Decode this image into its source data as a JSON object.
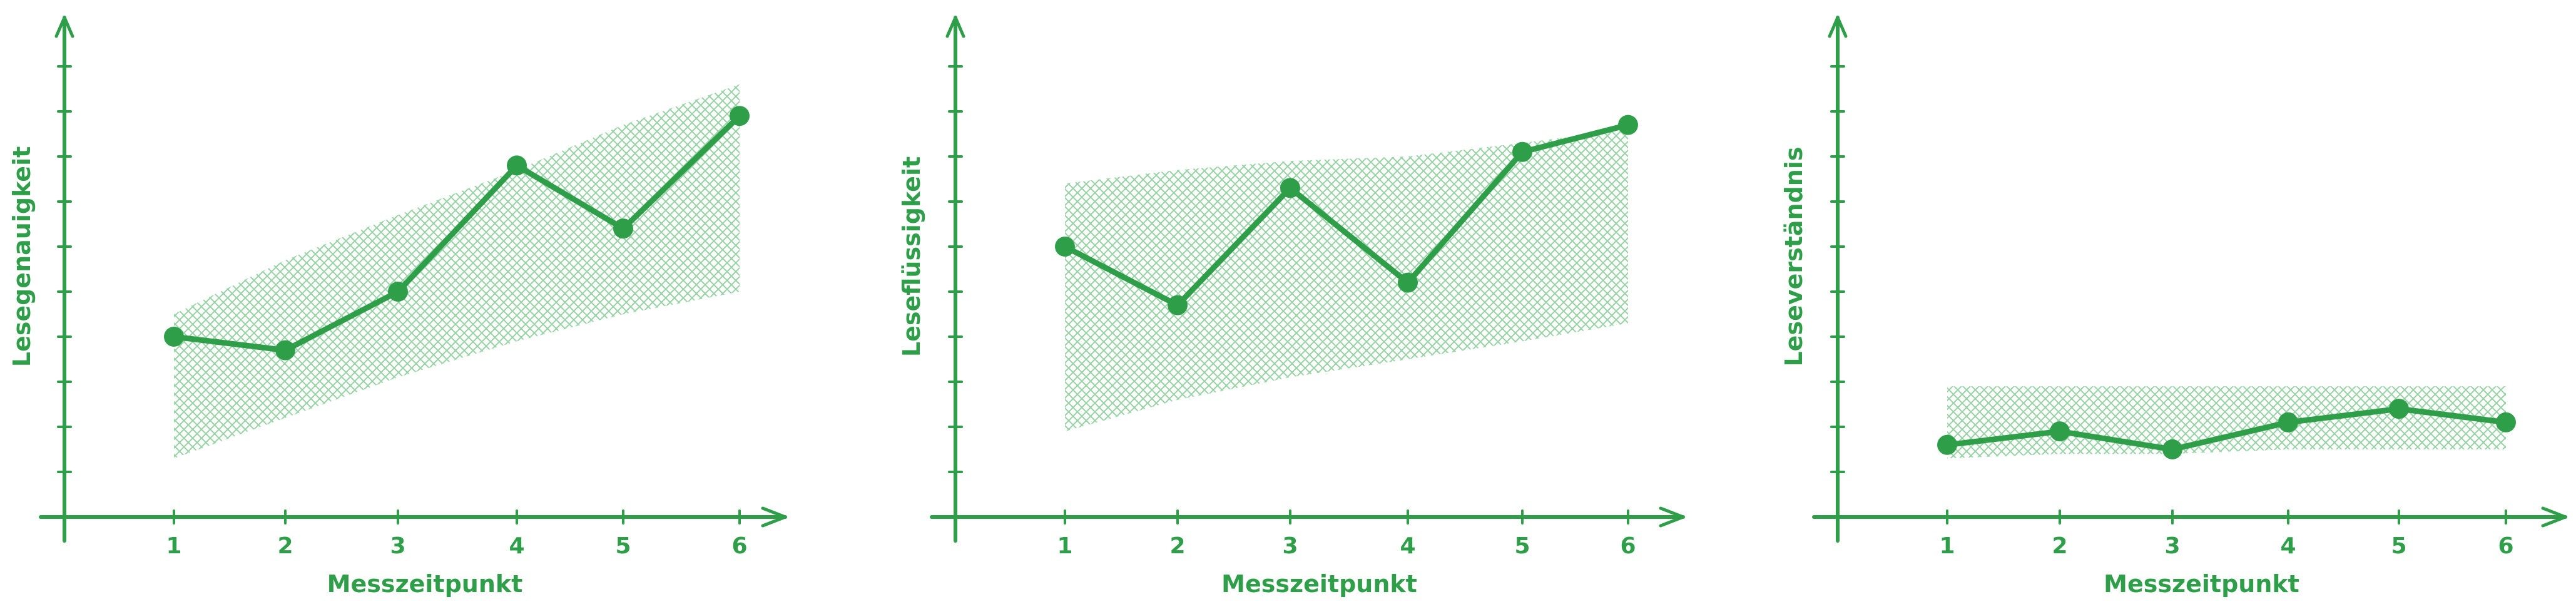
{
  "colors": {
    "accent": "#2e9e48",
    "band": "#8fd19e",
    "background": "#ffffff"
  },
  "chart_data": [
    {
      "type": "line",
      "title": "",
      "xlabel": "Messzeitpunkt",
      "ylabel": "Lesegenauigkeit",
      "x": [
        1,
        2,
        3,
        4,
        5,
        6
      ],
      "xticklabels": [
        "1",
        "2",
        "3",
        "4",
        "5",
        "6"
      ],
      "series": [
        {
          "values": [
            4.0,
            3.7,
            5.0,
            7.8,
            6.4,
            8.9
          ]
        }
      ],
      "band": {
        "lower": [
          1.3,
          2.2,
          3.1,
          3.9,
          4.5,
          5.0
        ],
        "upper": [
          4.5,
          5.7,
          6.7,
          7.7,
          8.7,
          9.6
        ]
      },
      "xlim": [
        0,
        6.5
      ],
      "ylim": [
        0,
        11
      ],
      "y_ticks": [
        1,
        2,
        3,
        4,
        5,
        6,
        7,
        8,
        9,
        10
      ],
      "grid": false,
      "legend": "none"
    },
    {
      "type": "line",
      "title": "",
      "xlabel": "Messzeitpunkt",
      "ylabel": "Leseflüssigkeit",
      "x": [
        1,
        2,
        3,
        4,
        5,
        6
      ],
      "xticklabels": [
        "1",
        "2",
        "3",
        "4",
        "5",
        "6"
      ],
      "series": [
        {
          "values": [
            6.0,
            4.7,
            7.3,
            5.2,
            8.1,
            8.7
          ]
        }
      ],
      "band": {
        "lower": [
          1.9,
          2.6,
          3.1,
          3.5,
          3.9,
          4.3
        ],
        "upper": [
          7.4,
          7.7,
          7.9,
          8.0,
          8.3,
          8.6
        ]
      },
      "xlim": [
        0,
        6.5
      ],
      "ylim": [
        0,
        11
      ],
      "y_ticks": [
        1,
        2,
        3,
        4,
        5,
        6,
        7,
        8,
        9,
        10
      ],
      "grid": false,
      "legend": "none"
    },
    {
      "type": "line",
      "title": "",
      "xlabel": "Messzeitpunkt",
      "ylabel": "Leseverständnis",
      "x": [
        1,
        2,
        3,
        4,
        5,
        6
      ],
      "xticklabels": [
        "1",
        "2",
        "3",
        "4",
        "5",
        "6"
      ],
      "series": [
        {
          "values": [
            1.6,
            1.9,
            1.5,
            2.1,
            2.4,
            2.1
          ]
        }
      ],
      "band": {
        "lower": [
          1.3,
          1.4,
          1.4,
          1.5,
          1.5,
          1.5
        ],
        "upper": [
          2.9,
          2.9,
          2.9,
          2.9,
          2.9,
          2.9
        ]
      },
      "xlim": [
        0,
        6.5
      ],
      "ylim": [
        0,
        11
      ],
      "y_ticks": [
        1,
        2,
        3,
        4,
        5,
        6,
        7,
        8,
        9,
        10
      ],
      "grid": false,
      "legend": "none"
    }
  ]
}
